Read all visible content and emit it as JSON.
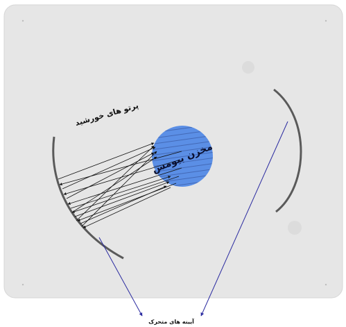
{
  "labels": {
    "sun_rays": "پرتو های خورشید",
    "reservoir": "مخزن بیومس",
    "moving_mirrors": "آیینه های متحرک"
  },
  "colors": {
    "panel": "#e6e6e6",
    "mirror": "#5a5a5a",
    "tank": "#5b8fe6",
    "ray": "#111111",
    "pointer": "#2a2aa0"
  }
}
